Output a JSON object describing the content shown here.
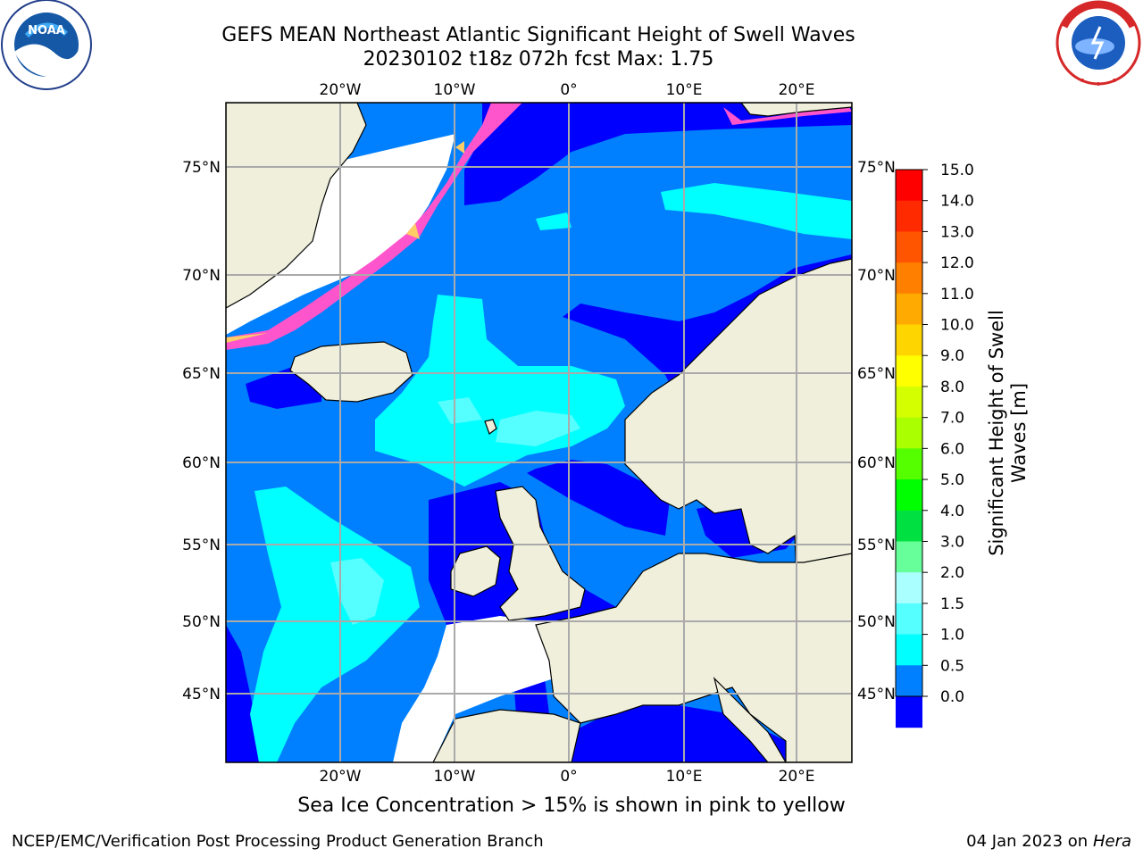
{
  "title_line1": "GEFS MEAN Northeast Atlantic Significant Height of Swell Waves",
  "title_line2": "20230102 t18z 072h fcst   Max: 1.75",
  "lon_labels": [
    "20°W",
    "10°W",
    "0°",
    "10°E",
    "20°E"
  ],
  "lat_labels": [
    "75°N",
    "70°N",
    "65°N",
    "60°N",
    "55°N",
    "50°N",
    "45°N"
  ],
  "colorbar": {
    "title_line1": "Significant Height of Swell",
    "title_line2": "Waves [m]",
    "ticks": [
      "15.0",
      "14.0",
      "13.0",
      "12.0",
      "11.0",
      "10.0",
      "9.0",
      "8.0",
      "7.0",
      "6.0",
      "5.0",
      "4.0",
      "3.0",
      "2.0",
      "1.5",
      "1.0",
      "0.5",
      "0.0"
    ],
    "colors": [
      "#ff0000",
      "#ff2a00",
      "#ff5500",
      "#ff8000",
      "#ffaa00",
      "#ffd500",
      "#ffff00",
      "#d4ff00",
      "#aaff00",
      "#55ff00",
      "#00ff00",
      "#00e040",
      "#66ff99",
      "#aaffff",
      "#55ffff",
      "#00ffff",
      "#0080ff",
      "#0000ff"
    ]
  },
  "caption": "Sea Ice Concentration > 15% is shown in pink to yellow",
  "footer_left": "NCEP/EMC/Verification Post Processing Product Generation Branch",
  "footer_right_date": "04 Jan 2023 on ",
  "footer_right_host": "Hera",
  "logos": {
    "left": "NOAA",
    "right": "NATIONAL WEATHER SERVICE"
  },
  "map_colors": {
    "land": "#efefdc",
    "no_data": "#ffffff",
    "swell_0_05": "#0000ff",
    "swell_05_1": "#0080ff",
    "swell_1_15": "#00ffff",
    "swell_15_2": "#55ffff",
    "ice": "#ff55cc",
    "ice_edge": "#ffcc66",
    "grid": "#aaaaaa"
  }
}
